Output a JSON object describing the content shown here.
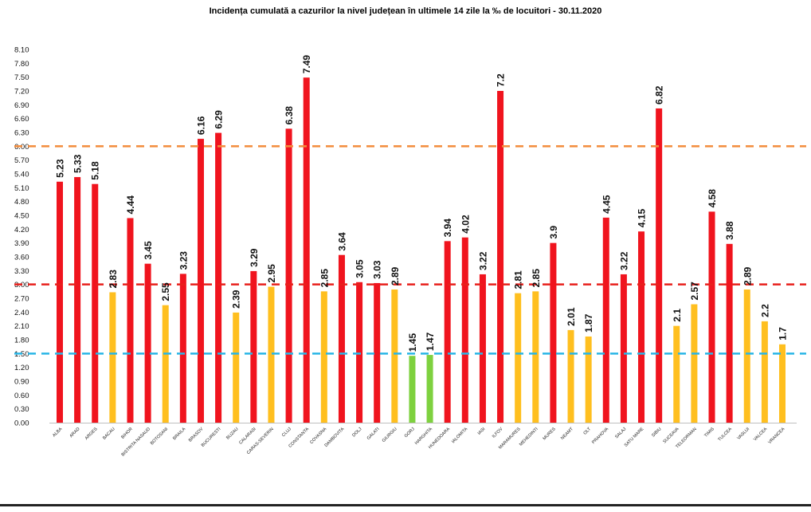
{
  "chart_data": {
    "type": "bar",
    "title": "Incidența cumulată a cazurilor la nivel județean în ultimele 14 zile la ‰ de locuitori - 30.11.2020",
    "xlabel": "",
    "ylabel": "",
    "ylim": [
      0,
      8.1
    ],
    "yticks": [
      "8.10",
      "7.80",
      "7.50",
      "7.20",
      "6.90",
      "6.60",
      "6.30",
      "6.00",
      "5.70",
      "5.40",
      "5.10",
      "4.80",
      "4.50",
      "4.20",
      "3.90",
      "3.60",
      "3.30",
      "3.00",
      "2.70",
      "2.40",
      "2.10",
      "1.80",
      "1.50",
      "1.20",
      "0.90",
      "0.60",
      "0.30",
      "0.00"
    ],
    "categories": [
      "ALBA",
      "ARAD",
      "ARGES",
      "BACAU",
      "BIHOR",
      "BISTRITA NASAUD",
      "BOTOSANI",
      "BRAILA",
      "BRASOV",
      "BUCURESTI",
      "BUZAU",
      "CALARASI",
      "CARAS-SEVERIN",
      "CLUJ",
      "CONSTANTA",
      "COVASNA",
      "DAMBOVITA",
      "DOLJ",
      "GALATI",
      "GIURGIU",
      "GORJ",
      "HARGHITA",
      "HUNEDOARA",
      "IALOMITA",
      "IASI",
      "ILFOV",
      "MARAMURES",
      "MEHEDINTI",
      "MURES",
      "NEAMT",
      "OLT",
      "PRAHOVA",
      "SALAJ",
      "SATU MARE",
      "SIBIU",
      "SUCEAVA",
      "TELEORMAN",
      "TIMIS",
      "TULCEA",
      "VASLUI",
      "VALCEA",
      "VRANCEA"
    ],
    "values": [
      5.23,
      5.33,
      5.18,
      2.83,
      4.44,
      3.45,
      2.55,
      3.23,
      6.16,
      6.29,
      2.39,
      3.29,
      2.95,
      6.38,
      7.49,
      2.85,
      3.64,
      3.05,
      3.03,
      2.89,
      1.45,
      1.47,
      3.94,
      4.02,
      3.22,
      7.2,
      2.81,
      2.85,
      3.9,
      2.01,
      1.87,
      4.45,
      3.22,
      4.15,
      6.82,
      2.1,
      2.57,
      4.58,
      3.88,
      2.89,
      2.2,
      1.7
    ],
    "value_labels": [
      "5.23",
      "5.33",
      "5.18",
      "2.83",
      "4.44",
      "3.45",
      "2.55",
      "3.23",
      "6.16",
      "6.29",
      "2.39",
      "3.29",
      "2.95",
      "6.38",
      "7.49",
      "2.85",
      "3.64",
      "3.05",
      "3.03",
      "2.89",
      "1.45",
      "1.47",
      "3.94",
      "4.02",
      "3.22",
      "7.2",
      "2.81",
      "2.85",
      "3.9",
      "2.01",
      "1.87",
      "4.45",
      "3.22",
      "4.15",
      "6.82",
      "2.1",
      "2.57",
      "4.58",
      "3.88",
      "2.89",
      "2.2",
      "1.7"
    ],
    "thresholds": [
      {
        "value": 6.0,
        "color": "#f28c3c",
        "style": "dashed"
      },
      {
        "value": 3.0,
        "color": "#e8211d",
        "style": "dashed"
      },
      {
        "value": 1.5,
        "color": "#2bb6e6",
        "style": "dashed"
      }
    ],
    "color_rules": [
      {
        "min": 3.0,
        "color": "#f0141e"
      },
      {
        "min": 1.5,
        "color": "#ffbf1f"
      },
      {
        "min": 0,
        "color": "#7ed13f"
      }
    ],
    "grid": false,
    "legend": "none"
  }
}
